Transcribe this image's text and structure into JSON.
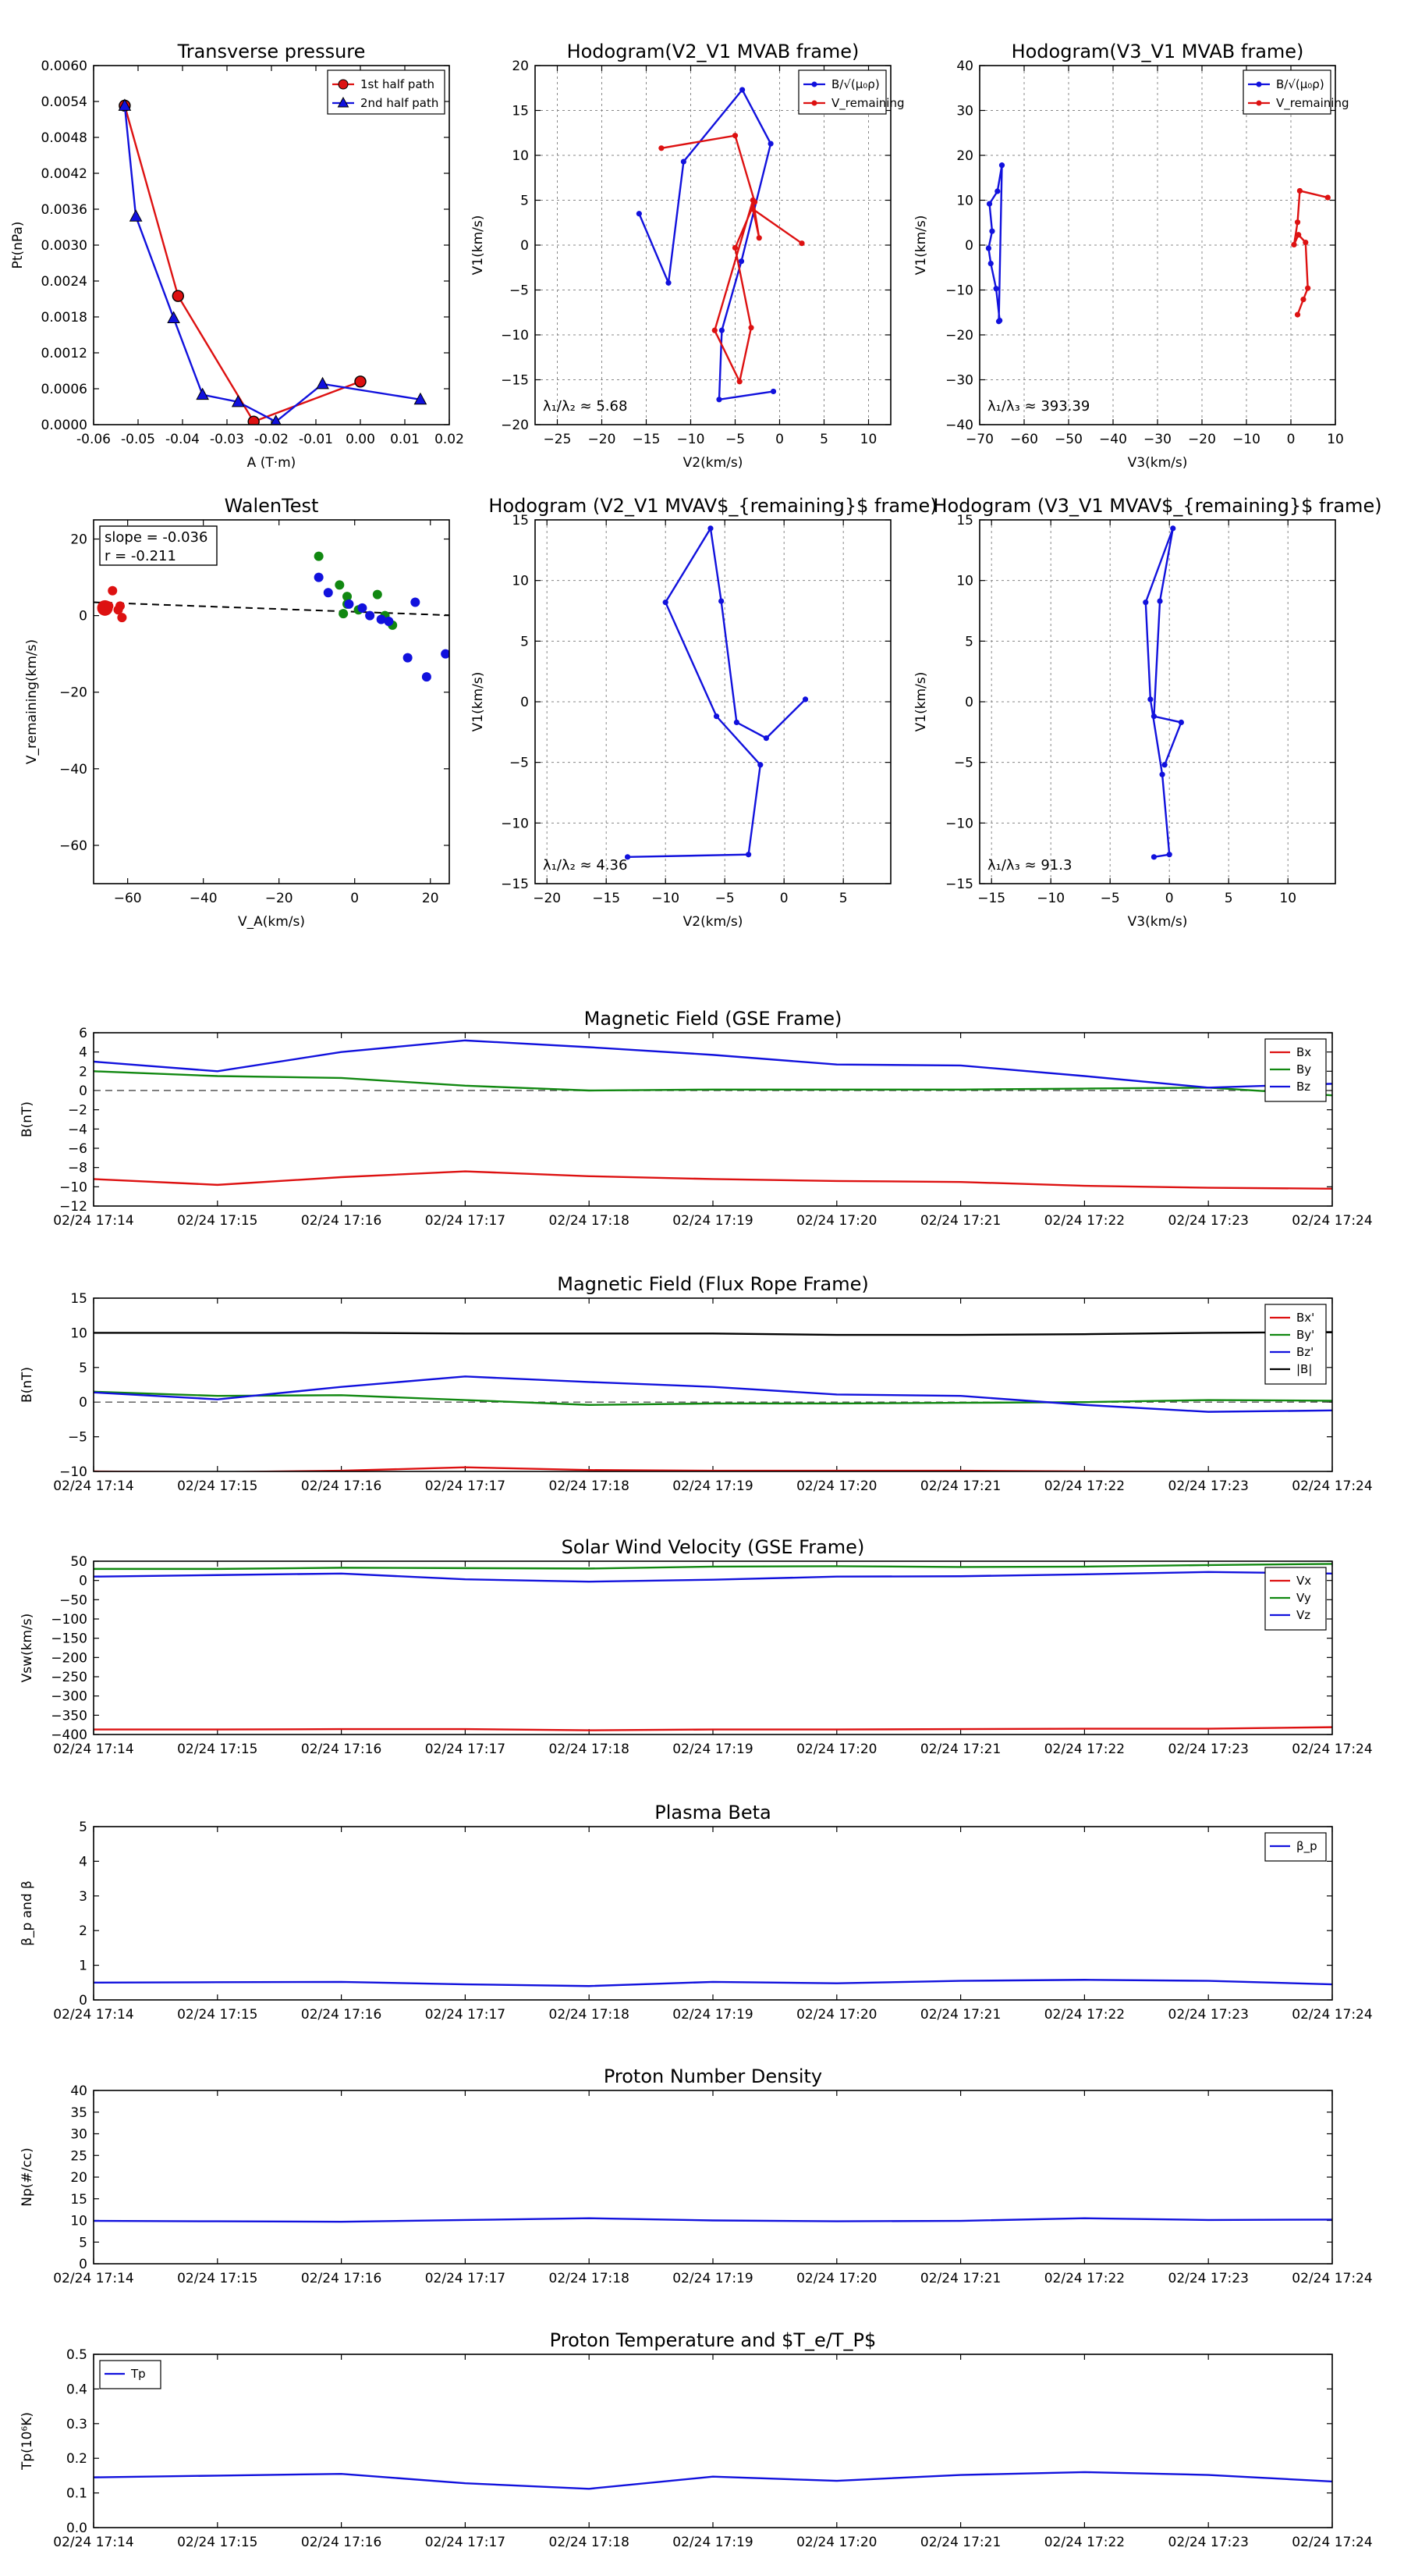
{
  "colors": {
    "red": "#dd1111",
    "blue": "#1111dd",
    "green": "#118811",
    "black": "#000000",
    "gray": "#999999"
  },
  "chart_data": [
    {
      "id": "pt",
      "type": "line",
      "title": "Transverse pressure",
      "xlabel": "A (T·m)",
      "ylabel": "Pt(nPa)",
      "xlim": [
        -0.06,
        0.02
      ],
      "ylim": [
        0,
        0.006
      ],
      "xticks": [
        -0.06,
        -0.05,
        -0.04,
        -0.03,
        -0.02,
        -0.01,
        0,
        0.01,
        0.02
      ],
      "xtick_labels": [
        "-0.06",
        "-0.05",
        "-0.04",
        "-0.03",
        "-0.02",
        "-0.01",
        "0.00",
        "0.01",
        "0.02"
      ],
      "yticks": [
        0,
        0.0006,
        0.0012,
        0.0018,
        0.0024,
        0.003,
        0.0036,
        0.0042,
        0.0048,
        0.0054,
        0.006
      ],
      "ytick_labels": [
        "0.0000",
        "0.0006",
        "0.0012",
        "0.0018",
        "0.0024",
        "0.0030",
        "0.0036",
        "0.0042",
        "0.0048",
        "0.0054",
        "0.0060"
      ],
      "grid": false,
      "legend": "top-right",
      "series": [
        {
          "name": "1st half path",
          "color": "red",
          "marker": "circle",
          "x": [
            -0.053,
            -0.041,
            -0.024,
            0.0
          ],
          "y": [
            0.00533,
            0.00215,
            5e-05,
            0.00072
          ]
        },
        {
          "name": "2nd half path",
          "color": "blue",
          "marker": "triangle",
          "x": [
            -0.053,
            -0.0505,
            -0.042,
            -0.0355,
            -0.0275,
            -0.019,
            -0.0085,
            0.0135
          ],
          "y": [
            0.00533,
            0.00348,
            0.00178,
            0.0005,
            0.00038,
            5e-05,
            0.00068,
            0.00042
          ]
        }
      ]
    },
    {
      "id": "h1",
      "type": "line",
      "title": "Hodogram(V2_V1 MVAB frame)",
      "xlabel": "V2(km/s)",
      "ylabel": "V1(km/s)",
      "xlim": [
        -27.5,
        12.5
      ],
      "ylim": [
        -20,
        20
      ],
      "xticks": [
        -25,
        -20,
        -15,
        -10,
        -5,
        0,
        5,
        10
      ],
      "xtick_labels": [
        "−25",
        "−20",
        "−15",
        "−10",
        "−5",
        "0",
        "5",
        "10"
      ],
      "yticks": [
        -20,
        -15,
        -10,
        -5,
        0,
        5,
        10,
        15,
        20
      ],
      "ytick_labels": [
        "−20",
        "−15",
        "−10",
        "−5",
        "0",
        "5",
        "10",
        "15",
        "20"
      ],
      "grid": true,
      "legend": "top-right",
      "annotation": "λ₁/λ₂ ≈ 5.68",
      "series": [
        {
          "name": "B/√(μ₀ρ)",
          "color": "blue",
          "marker": "dot",
          "x": [
            -15.8,
            -12.5,
            -10.8,
            -4.2,
            -1.0,
            -4.3,
            -6.5,
            -6.8,
            -0.7
          ],
          "y": [
            3.5,
            -4.2,
            9.3,
            17.3,
            11.3,
            -1.8,
            -9.5,
            -17.2,
            -16.3
          ]
        },
        {
          "name": "V_remaining",
          "color": "red",
          "marker": "dot",
          "x": [
            -13.3,
            -5.0,
            -2.8,
            -5.0,
            -3.2,
            -4.5,
            -7.3,
            -3.0,
            -2.3,
            -3.0,
            2.5
          ],
          "y": [
            10.8,
            12.2,
            4.8,
            -0.3,
            -9.2,
            -15.2,
            -9.5,
            5.0,
            0.8,
            4.0,
            0.2
          ]
        }
      ]
    },
    {
      "id": "h2",
      "type": "line",
      "title": "Hodogram(V3_V1 MVAB frame)",
      "xlabel": "V3(km/s)",
      "ylabel": "V1(km/s)",
      "xlim": [
        -70,
        10
      ],
      "ylim": [
        -40,
        40
      ],
      "xticks": [
        -70,
        -60,
        -50,
        -40,
        -30,
        -20,
        -10,
        0,
        10
      ],
      "xtick_labels": [
        "−70",
        "−60",
        "−50",
        "−40",
        "−30",
        "−20",
        "−10",
        "0",
        "10"
      ],
      "yticks": [
        -40,
        -30,
        -20,
        -10,
        0,
        10,
        20,
        30,
        40
      ],
      "ytick_labels": [
        "−40",
        "−30",
        "−20",
        "−10",
        "0",
        "10",
        "20",
        "30",
        "40"
      ],
      "grid": true,
      "legend": "top-right",
      "annotation": "λ₁/λ₃ ≈ 393.39",
      "series": [
        {
          "name": "B/√(μ₀ρ)",
          "color": "blue",
          "marker": "dot",
          "x": [
            -65.5,
            -66.3,
            -67.5,
            -68.0,
            -67.2,
            -67.8,
            -66.0,
            -65.0,
            -65.7
          ],
          "y": [
            -16.8,
            -9.7,
            -4.1,
            -0.7,
            3.1,
            9.2,
            12.0,
            17.8,
            -17.0
          ]
        },
        {
          "name": "V_remaining",
          "color": "red",
          "marker": "dot",
          "x": [
            8.3,
            2.0,
            1.5,
            0.7,
            1.7,
            3.3,
            3.8,
            2.8,
            1.5
          ],
          "y": [
            10.6,
            12.1,
            5.1,
            0.1,
            2.3,
            0.6,
            -9.6,
            -12.1,
            -15.5
          ]
        }
      ]
    },
    {
      "id": "walen",
      "type": "scatter",
      "title": "WalenTest",
      "xlabel": "V_A(km/s)",
      "ylabel": "V_remaining(km/s)",
      "xlim": [
        -69,
        25
      ],
      "ylim": [
        -70,
        25
      ],
      "xticks": [
        -60,
        -40,
        -20,
        0,
        20
      ],
      "xtick_labels": [
        "−60",
        "−40",
        "−20",
        "0",
        "20"
      ],
      "yticks": [
        -60,
        -40,
        -20,
        0,
        20
      ],
      "ytick_labels": [
        "−60",
        "−40",
        "−20",
        "0",
        "20"
      ],
      "grid": false,
      "annotation": [
        "slope = -0.036",
        "r = -0.211"
      ],
      "fit": {
        "slope": -0.036,
        "intercept": 1.0,
        "style": "dashed"
      },
      "series": [
        {
          "color": "red",
          "points": [
            [
              -66,
              2
            ],
            [
              -65,
              2.5
            ],
            [
              -64,
              6.5
            ],
            [
              -62,
              2.5
            ],
            [
              -61.5,
              -0.5
            ],
            [
              -62.5,
              1.5
            ]
          ]
        },
        {
          "color": "green",
          "points": [
            [
              -9.5,
              15.5
            ],
            [
              -4,
              8
            ],
            [
              -2,
              5
            ],
            [
              -2,
              3
            ],
            [
              1,
              1.5
            ],
            [
              6,
              5.5
            ],
            [
              8,
              0
            ],
            [
              -3,
              0.5
            ],
            [
              10,
              -2.5
            ]
          ]
        },
        {
          "color": "blue",
          "points": [
            [
              -9.5,
              10
            ],
            [
              -7,
              6
            ],
            [
              -1.5,
              3
            ],
            [
              2,
              2
            ],
            [
              4,
              0
            ],
            [
              7,
              -1
            ],
            [
              9,
              -1.5
            ],
            [
              14,
              -11
            ],
            [
              16,
              3.5
            ],
            [
              19,
              -16
            ],
            [
              24,
              -10
            ]
          ]
        }
      ]
    },
    {
      "id": "h3",
      "type": "line",
      "title": "Hodogram (V2_V1 MVAV$_{remaining}$ frame)",
      "xlabel": "V2(km/s)",
      "ylabel": "V1(km/s)",
      "xlim": [
        -21,
        9
      ],
      "ylim": [
        -15,
        15
      ],
      "xticks": [
        -20,
        -15,
        -10,
        -5,
        0,
        5
      ],
      "xtick_labels": [
        "−20",
        "−15",
        "−10",
        "−5",
        "0",
        "5"
      ],
      "yticks": [
        -15,
        -10,
        -5,
        0,
        5,
        10,
        15
      ],
      "ytick_labels": [
        "−15",
        "−10",
        "−5",
        "0",
        "5",
        "10",
        "15"
      ],
      "grid": true,
      "annotation": "λ₁/λ₂ ≈ 4.36",
      "series": [
        {
          "color": "blue",
          "marker": "dot",
          "x": [
            -13.2,
            -3.0,
            -2.0,
            -5.7,
            -10.0,
            -6.2,
            -5.3,
            -4.0,
            -1.5,
            1.8
          ],
          "y": [
            -12.8,
            -12.6,
            -5.2,
            -1.2,
            8.2,
            14.3,
            8.3,
            -1.7,
            -3.0,
            0.2
          ]
        }
      ]
    },
    {
      "id": "h4",
      "type": "line",
      "title": "Hodogram (V3_V1 MVAV$_{remaining}$ frame)",
      "xlabel": "V3(km/s)",
      "ylabel": "V1(km/s)",
      "xlim": [
        -16,
        14
      ],
      "ylim": [
        -15,
        15
      ],
      "xticks": [
        -15,
        -10,
        -5,
        0,
        5,
        10
      ],
      "xtick_labels": [
        "−15",
        "−10",
        "−5",
        "0",
        "5",
        "10"
      ],
      "yticks": [
        -15,
        -10,
        -5,
        0,
        5,
        10,
        15
      ],
      "ytick_labels": [
        "−15",
        "−10",
        "−5",
        "0",
        "5",
        "10",
        "15"
      ],
      "grid": true,
      "annotation": "λ₁/λ₃ ≈ 91.3",
      "series": [
        {
          "color": "blue",
          "marker": "dot",
          "x": [
            -1.3,
            0.0,
            -0.6,
            -1.6,
            -2.0,
            0.3,
            -0.8,
            -1.3,
            1.0,
            -0.4
          ],
          "y": [
            -12.8,
            -12.6,
            -6.0,
            0.2,
            8.2,
            14.3,
            8.3,
            -1.2,
            -1.7,
            -5.2
          ]
        }
      ]
    }
  ],
  "time_axis": {
    "ticks": [
      "02/24 17:14",
      "02/24 17:15",
      "02/24 17:16",
      "02/24 17:17",
      "02/24 17:18",
      "02/24 17:19",
      "02/24 17:20",
      "02/24 17:21",
      "02/24 17:22",
      "02/24 17:23",
      "02/24 17:24"
    ]
  },
  "time_panels": [
    {
      "id": "bgse",
      "title": "Magnetic Field (GSE Frame)",
      "ylabel": "B(nT)",
      "ylim": [
        -12,
        6
      ],
      "yticks": [
        -12,
        -10,
        -8,
        -6,
        -4,
        -2,
        0,
        2,
        4,
        6
      ],
      "ytick_labels": [
        "−12",
        "−10",
        "−8",
        "−6",
        "−4",
        "−2",
        "0",
        "2",
        "4",
        "6"
      ],
      "zero_line": true,
      "legend": "top-right",
      "series": [
        {
          "name": "Bx",
          "color": "red",
          "values": [
            -9.2,
            -9.8,
            -9.0,
            -8.4,
            -8.9,
            -9.2,
            -9.4,
            -9.5,
            -9.9,
            -10.1,
            -10.2
          ]
        },
        {
          "name": "By",
          "color": "green",
          "values": [
            2.0,
            1.5,
            1.3,
            0.5,
            0.0,
            0.1,
            0.1,
            0.1,
            0.2,
            0.3,
            -0.5
          ]
        },
        {
          "name": "Bz",
          "color": "blue",
          "values": [
            3.0,
            2.0,
            4.0,
            5.2,
            4.5,
            3.7,
            2.7,
            2.6,
            1.5,
            0.3,
            0.7
          ]
        }
      ]
    },
    {
      "id": "bfr",
      "title": "Magnetic Field (Flux Rope Frame)",
      "ylabel": "B(nT)",
      "ylim": [
        -10,
        15
      ],
      "yticks": [
        -10,
        -5,
        0,
        5,
        10,
        15
      ],
      "ytick_labels": [
        "−10",
        "−5",
        "0",
        "5",
        "10",
        "15"
      ],
      "zero_line": true,
      "legend": "top-right",
      "series": [
        {
          "name": "Bx'",
          "color": "red",
          "values": [
            -10.0,
            -10.1,
            -9.9,
            -9.4,
            -9.8,
            -9.9,
            -9.9,
            -9.9,
            -10.0,
            -10.1,
            -10.1
          ]
        },
        {
          "name": "By'",
          "color": "green",
          "values": [
            1.5,
            0.9,
            1.0,
            0.3,
            -0.4,
            -0.2,
            -0.2,
            -0.1,
            0.0,
            0.3,
            0.2
          ]
        },
        {
          "name": "Bz'",
          "color": "blue",
          "values": [
            1.4,
            0.4,
            2.2,
            3.7,
            2.9,
            2.2,
            1.1,
            0.9,
            -0.4,
            -1.4,
            -1.2
          ]
        },
        {
          "name": "|B|",
          "color": "black",
          "values": [
            10.0,
            10.0,
            10.0,
            9.9,
            9.9,
            9.9,
            9.7,
            9.7,
            9.8,
            10.0,
            10.1
          ]
        }
      ]
    },
    {
      "id": "vsw",
      "title": "Solar Wind Velocity (GSE Frame)",
      "ylabel": "Vsw(km/s)",
      "ylim": [
        -400,
        50
      ],
      "yticks": [
        -400,
        -350,
        -300,
        -250,
        -200,
        -150,
        -100,
        -50,
        0,
        50
      ],
      "ytick_labels": [
        "−400",
        "−350",
        "−300",
        "−250",
        "−200",
        "−150",
        "−100",
        "−50",
        "0",
        "50"
      ],
      "zero_line": false,
      "legend": "top-right",
      "series": [
        {
          "name": "Vx",
          "color": "red",
          "values": [
            -387,
            -387,
            -386,
            -386,
            -389,
            -387,
            -387,
            -386,
            -385,
            -385,
            -381
          ]
        },
        {
          "name": "Vy",
          "color": "green",
          "values": [
            30,
            30,
            33,
            32,
            31,
            36,
            37,
            35,
            36,
            40,
            43
          ]
        },
        {
          "name": "Vz",
          "color": "blue",
          "values": [
            10,
            14,
            18,
            3,
            -3,
            2,
            10,
            11,
            16,
            22,
            18
          ]
        }
      ]
    },
    {
      "id": "beta",
      "title": "Plasma Beta",
      "ylabel": "β_p and β",
      "ylim": [
        0,
        5
      ],
      "yticks": [
        0,
        1,
        2,
        3,
        4,
        5
      ],
      "ytick_labels": [
        "0",
        "1",
        "2",
        "3",
        "4",
        "5"
      ],
      "zero_line": false,
      "legend": "top-right",
      "series": [
        {
          "name": "β_p",
          "color": "blue",
          "values": [
            0.5,
            0.51,
            0.52,
            0.45,
            0.4,
            0.52,
            0.48,
            0.55,
            0.58,
            0.55,
            0.45
          ]
        }
      ]
    },
    {
      "id": "np",
      "title": "Proton Number Density",
      "ylabel": "Np(#/cc)",
      "ylim": [
        0,
        40
      ],
      "yticks": [
        0,
        5,
        10,
        15,
        20,
        25,
        30,
        35,
        40
      ],
      "ytick_labels": [
        "0",
        "5",
        "10",
        "15",
        "20",
        "25",
        "30",
        "35",
        "40"
      ],
      "zero_line": false,
      "legend": "none",
      "series": [
        {
          "name": "Np",
          "color": "blue",
          "values": [
            9.9,
            9.8,
            9.7,
            10.1,
            10.5,
            10.0,
            9.8,
            9.9,
            10.5,
            10.1,
            10.2
          ]
        }
      ]
    },
    {
      "id": "tp",
      "title": "Proton Temperature and $T_e/T_P$",
      "ylabel": "Tp(10⁶K)",
      "ylim": [
        0,
        0.5
      ],
      "yticks": [
        0,
        0.1,
        0.2,
        0.3,
        0.4,
        0.5
      ],
      "ytick_labels": [
        "0.0",
        "0.1",
        "0.2",
        "0.3",
        "0.4",
        "0.5"
      ],
      "zero_line": false,
      "legend": "top-left",
      "series": [
        {
          "name": "Tp",
          "color": "blue",
          "values": [
            0.145,
            0.15,
            0.155,
            0.128,
            0.112,
            0.147,
            0.135,
            0.152,
            0.16,
            0.152,
            0.133
          ]
        }
      ]
    }
  ]
}
